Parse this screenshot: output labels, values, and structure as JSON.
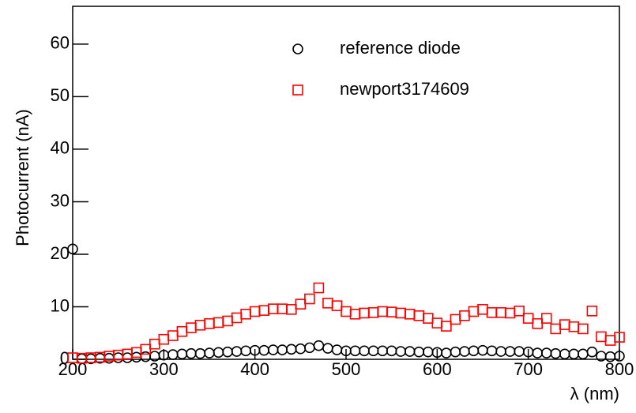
{
  "chart_data": {
    "type": "scatter",
    "x_label": "λ (nm)",
    "y_label": "Photocurrent (nA)",
    "x": [
      200,
      210,
      220,
      230,
      240,
      250,
      260,
      270,
      280,
      290,
      300,
      310,
      320,
      330,
      340,
      350,
      360,
      370,
      380,
      390,
      400,
      410,
      420,
      430,
      440,
      450,
      460,
      470,
      480,
      490,
      500,
      510,
      520,
      530,
      540,
      550,
      560,
      570,
      580,
      590,
      600,
      610,
      620,
      630,
      640,
      650,
      660,
      670,
      680,
      690,
      700,
      710,
      720,
      730,
      740,
      750,
      760,
      770,
      780,
      790,
      800
    ],
    "series": [
      {
        "name": "reference diode",
        "color": "#000000",
        "marker": "circle",
        "values": [
          21,
          0.1,
          0.1,
          0.2,
          0.2,
          0.3,
          0.3,
          0.4,
          0.5,
          0.6,
          0.8,
          0.9,
          1.0,
          1.1,
          1.1,
          1.2,
          1.3,
          1.4,
          1.5,
          1.6,
          1.7,
          1.7,
          1.8,
          1.8,
          1.9,
          2.0,
          2.2,
          2.6,
          2.1,
          1.8,
          1.6,
          1.6,
          1.6,
          1.6,
          1.6,
          1.6,
          1.5,
          1.5,
          1.4,
          1.4,
          1.3,
          1.2,
          1.4,
          1.5,
          1.6,
          1.7,
          1.6,
          1.5,
          1.5,
          1.5,
          1.4,
          1.2,
          1.2,
          1.1,
          1.0,
          1.0,
          1.0,
          1.4,
          0.6,
          0.5,
          0.6
        ]
      },
      {
        "name": "newport3174609",
        "color": "#ff0000",
        "marker": "square",
        "values": [
          0.3,
          0.2,
          0.3,
          0.4,
          0.6,
          0.8,
          1.0,
          1.3,
          1.9,
          2.9,
          3.8,
          4.5,
          5.3,
          6.0,
          6.5,
          6.8,
          7.0,
          7.3,
          7.9,
          8.6,
          9.1,
          9.3,
          9.6,
          9.6,
          9.5,
          10.5,
          11.5,
          13.6,
          10.7,
          10.2,
          9.1,
          8.6,
          8.8,
          8.9,
          9.1,
          9.0,
          8.8,
          8.6,
          8.3,
          7.8,
          6.9,
          6.3,
          7.6,
          8.3,
          9.1,
          9.5,
          8.9,
          8.9,
          8.8,
          9.2,
          7.8,
          6.8,
          7.8,
          5.8,
          6.6,
          6.2,
          5.8,
          9.2,
          4.3,
          3.6,
          4.2
        ]
      }
    ],
    "xlim": [
      200,
      800
    ],
    "ylim": [
      0,
      67.2
    ],
    "xticks": [
      200,
      300,
      400,
      500,
      600,
      700,
      800
    ],
    "yticks": [
      0,
      10,
      20,
      30,
      40,
      50,
      60
    ],
    "legend": "top-right"
  }
}
